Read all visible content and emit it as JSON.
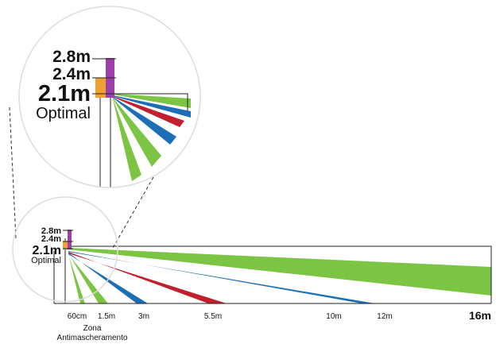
{
  "colors": {
    "green": "#7cc444",
    "blue": "#1c6fb6",
    "red": "#c3202f",
    "orange": "#f0a030",
    "purple": "#9e3ea8",
    "line": "#222222",
    "dash": "#333333",
    "circle_border": "#dddddd"
  },
  "heights": {
    "h28": "2.8m",
    "h24": "2.4m",
    "h21": "2.1m",
    "optimal": "Optimal"
  },
  "distances": {
    "d60cm": "60cm",
    "d15m": "1.5m",
    "d3m": "3m",
    "d55m": "5.5m",
    "d10m": "10m",
    "d12m": "12m",
    "d16m": "16m"
  },
  "zone": {
    "line1": "Zona",
    "line2": "Antimascheramento"
  },
  "beams": [
    {
      "name": "beam-green-16m",
      "color": "green",
      "range_m": 16
    },
    {
      "name": "beam-blue-12m",
      "color": "blue",
      "range_m": 12
    },
    {
      "name": "beam-red-5.5m",
      "color": "red",
      "range_m": 5.5
    },
    {
      "name": "beam-blue-3m",
      "color": "blue",
      "range_m": 3
    },
    {
      "name": "beam-green-1.5m",
      "color": "green",
      "range_m": 1.5
    },
    {
      "name": "beam-green-60cm",
      "color": "green",
      "range_m": 0.6
    }
  ]
}
